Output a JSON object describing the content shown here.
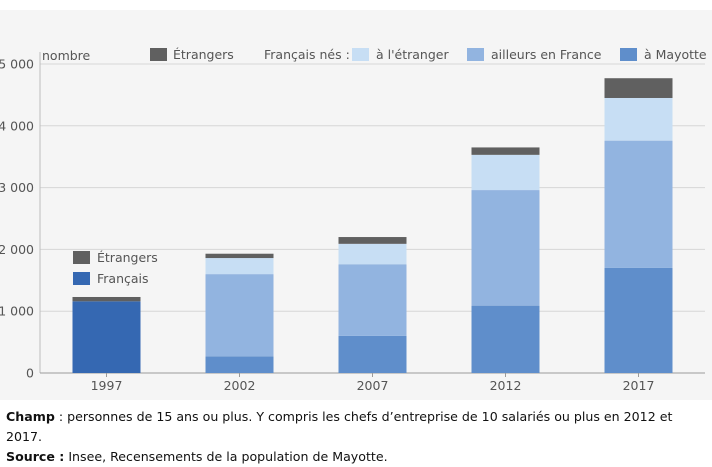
{
  "chart_data": {
    "type": "bar",
    "stacked": true,
    "categories": [
      "1997",
      "2002",
      "2007",
      "2012",
      "2017"
    ],
    "ylabel": "nombre",
    "ylim": [
      0,
      5000
    ],
    "yticks": [
      0,
      1000,
      2000,
      3000,
      4000,
      5000
    ],
    "ytick_labels": [
      "0",
      "1 000",
      "2 000",
      "3 000",
      "4 000",
      "5 000"
    ],
    "grid": true,
    "legend_prefix": "Français nés :",
    "legend_order": [
      "Étrangers",
      "à l'étranger",
      "ailleurs en France",
      "à Mayotte"
    ],
    "series": [
      {
        "name": "à Mayotte",
        "color": "#5f8ecb",
        "values": [
          null,
          270,
          600,
          1090,
          1700
        ]
      },
      {
        "name": "ailleurs en France",
        "color": "#92b4e0",
        "values": [
          null,
          1330,
          1160,
          1870,
          2060
        ]
      },
      {
        "name": "à l'étranger",
        "color": "#c7def4",
        "values": [
          null,
          260,
          330,
          570,
          690
        ]
      },
      {
        "name": "Français",
        "color": "#3568b2",
        "values": [
          1160,
          null,
          null,
          null,
          null
        ]
      },
      {
        "name": "Étrangers",
        "color": "#606060",
        "values": [
          70,
          70,
          110,
          120,
          320
        ]
      }
    ],
    "inset_legend": {
      "items": [
        {
          "name": "Étrangers",
          "color": "#606060"
        },
        {
          "name": "Français",
          "color": "#3568b2"
        }
      ]
    }
  },
  "notes": {
    "champ_label": "Champ",
    "champ_text": " : personnes de 15 ans ou plus. Y compris les chefs d’entreprise de 10 salariés ou plus en 2012 et 2017.",
    "source_label": "Source :",
    "source_text": " Insee, Recensements de la population de Mayotte."
  }
}
